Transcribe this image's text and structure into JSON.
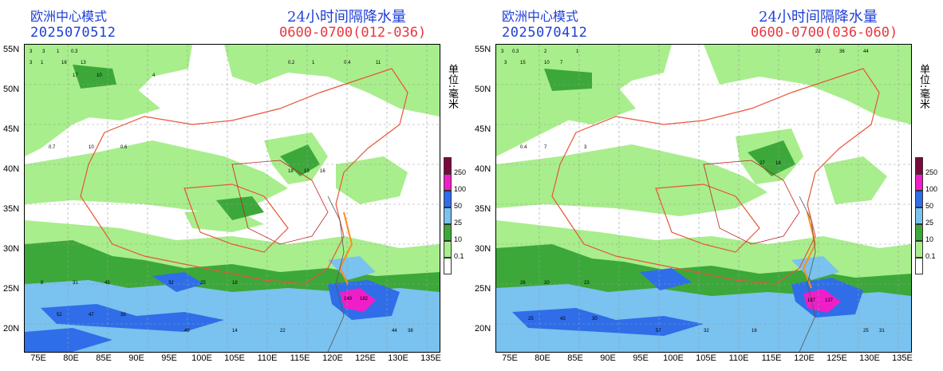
{
  "panels": [
    {
      "model_title": "欧洲中心模式",
      "run_date": "2025070512",
      "precip_title": "24小时间隔降水量",
      "period": "0600-0700(012-036)"
    },
    {
      "model_title": "欧洲中心模式",
      "run_date": "2025070412",
      "precip_title": "24小时间隔降水量",
      "period": "0600-0700(036-060)"
    }
  ],
  "unit": "单位:毫米",
  "lat_labels": [
    "55N",
    "50N",
    "45N",
    "40N",
    "35N",
    "30N",
    "25N",
    "20N"
  ],
  "lon_labels": [
    "75E",
    "80E",
    "85E",
    "90E",
    "95E",
    "100E",
    "105E",
    "110E",
    "115E",
    "120E",
    "125E",
    "130E",
    "135E"
  ],
  "legend": {
    "values": [
      "250",
      "100",
      "50",
      "25",
      "10",
      "0.1"
    ],
    "colors": [
      "#7a0a3c",
      "#f01ec8",
      "#2f6ee8",
      "#7ac2ef",
      "#3ca83a",
      "#a8ee8c",
      "#ffffff"
    ]
  },
  "colors": {
    "light_rain": "#a8ee8c",
    "moderate_rain": "#3ca83a",
    "heavy_rain": "#7ac2ef",
    "storm": "#2f6ee8",
    "extreme": "#f01ec8",
    "border_province": "#e8553a",
    "border_country": "#c02020",
    "coast": "#555555"
  }
}
